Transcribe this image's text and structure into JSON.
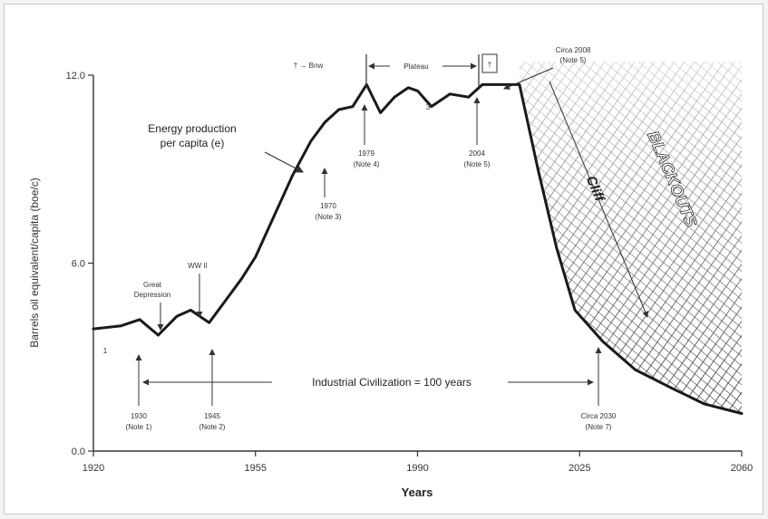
{
  "chart_data": {
    "type": "line",
    "xlabel": "Years",
    "ylabel": "Barrels oil equivalent/capita (boe/c)",
    "xlim": [
      1920,
      2060
    ],
    "ylim": [
      0,
      12
    ],
    "x_ticks": [
      "1920",
      "1955",
      "1990",
      "2025",
      "2060"
    ],
    "y_ticks": [
      "0.0",
      "6.0",
      "12.0"
    ],
    "series": [
      {
        "name": "Energy production per capita (e)",
        "points": [
          [
            1920,
            3.9
          ],
          [
            1926,
            4.0
          ],
          [
            1930,
            4.2
          ],
          [
            1934,
            3.7
          ],
          [
            1938,
            4.3
          ],
          [
            1941,
            4.5
          ],
          [
            1945,
            4.1
          ],
          [
            1948,
            4.7
          ],
          [
            1952,
            5.5
          ],
          [
            1955,
            6.2
          ],
          [
            1959,
            7.5
          ],
          [
            1963,
            8.8
          ],
          [
            1967,
            9.9
          ],
          [
            1970,
            10.5
          ],
          [
            1973,
            10.9
          ],
          [
            1976,
            11.0
          ],
          [
            1979,
            11.7
          ],
          [
            1982,
            10.8
          ],
          [
            1985,
            11.3
          ],
          [
            1988,
            11.6
          ],
          [
            1990,
            11.5
          ],
          [
            1993,
            11.0
          ],
          [
            1997,
            11.4
          ],
          [
            2001,
            11.3
          ],
          [
            2004,
            11.7
          ],
          [
            2008,
            11.7
          ],
          [
            2012,
            11.7
          ],
          [
            2016,
            9.0
          ],
          [
            2020,
            6.5
          ],
          [
            2024,
            4.5
          ],
          [
            2030,
            3.5
          ],
          [
            2037,
            2.6
          ],
          [
            2045,
            2.0
          ],
          [
            2052,
            1.5
          ],
          [
            2060,
            1.2
          ]
        ]
      }
    ],
    "annotations": {
      "series_label_line1": "Energy production",
      "series_label_line2": "per capita (e)",
      "legend_key": "† → Bnw",
      "plateau": "Plateau",
      "plateau_dagger": "†",
      "blackouts": "BLACKOUTS",
      "cliff": "Cliff",
      "industrial": "Industrial Civilization = 100 years",
      "one_mark": "1",
      "three_mark": "3",
      "great_dep_1": "Great",
      "great_dep_2": "Depression",
      "wwii": "WW II",
      "note_1930_a": "1930",
      "note_1930_b": "(Note 1)",
      "note_1945_a": "1945",
      "note_1945_b": "(Note 2)",
      "note_1970_a": "1970",
      "note_1970_b": "(Note 3)",
      "note_1979_a": "1979",
      "note_1979_b": "(Note 4)",
      "note_2004_a": "2004",
      "note_2004_b": "(Note 5)",
      "note_2008_a": "Circa 2008",
      "note_2008_b": "(Note 5)",
      "note_2030_a": "Circa 2030",
      "note_2030_b": "(Note 7)"
    },
    "grid": false
  }
}
